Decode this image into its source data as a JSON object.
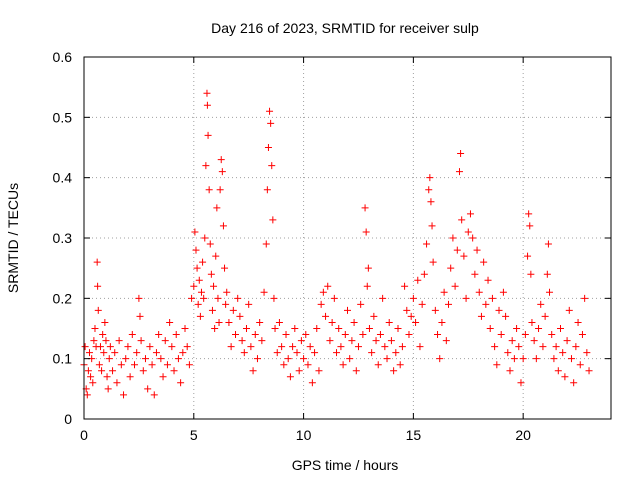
{
  "chart_data": {
    "type": "scatter",
    "title": "Day 216 of 2023, SRMTID for receiver sulp",
    "xlabel": "GPS time / hours",
    "ylabel": "SRMTID / TECUs",
    "xlim": [
      0,
      24
    ],
    "ylim": [
      0,
      0.6
    ],
    "xticks": [
      0,
      5,
      10,
      15,
      20
    ],
    "yticks": [
      0,
      0.1,
      0.2,
      0.3,
      0.4,
      0.5,
      0.6
    ],
    "xtick_labels": [
      "0",
      "5",
      "10",
      "15",
      "20"
    ],
    "ytick_labels": [
      "0",
      "0.1",
      "0.2",
      "0.3",
      "0.4",
      "0.5",
      "0.6"
    ],
    "grid": true,
    "marker": "+",
    "color": "#ff0000",
    "series": [
      {
        "name": "SRMTID",
        "points": [
          [
            0.0,
            0.09
          ],
          [
            0.05,
            0.12
          ],
          [
            0.1,
            0.05
          ],
          [
            0.15,
            0.04
          ],
          [
            0.2,
            0.08
          ],
          [
            0.25,
            0.11
          ],
          [
            0.3,
            0.07
          ],
          [
            0.35,
            0.1
          ],
          [
            0.4,
            0.06
          ],
          [
            0.45,
            0.13
          ],
          [
            0.5,
            0.15
          ],
          [
            0.55,
            0.12
          ],
          [
            0.6,
            0.26
          ],
          [
            0.62,
            0.22
          ],
          [
            0.65,
            0.18
          ],
          [
            0.7,
            0.09
          ],
          [
            0.75,
            0.12
          ],
          [
            0.8,
            0.08
          ],
          [
            0.85,
            0.14
          ],
          [
            0.9,
            0.11
          ],
          [
            0.95,
            0.16
          ],
          [
            1.0,
            0.13
          ],
          [
            1.05,
            0.07
          ],
          [
            1.1,
            0.05
          ],
          [
            1.15,
            0.1
          ],
          [
            1.2,
            0.12
          ],
          [
            1.3,
            0.08
          ],
          [
            1.4,
            0.11
          ],
          [
            1.5,
            0.06
          ],
          [
            1.6,
            0.13
          ],
          [
            1.7,
            0.09
          ],
          [
            1.8,
            0.04
          ],
          [
            1.9,
            0.1
          ],
          [
            2.0,
            0.12
          ],
          [
            2.1,
            0.07
          ],
          [
            2.2,
            0.14
          ],
          [
            2.3,
            0.09
          ],
          [
            2.4,
            0.11
          ],
          [
            2.5,
            0.2
          ],
          [
            2.55,
            0.17
          ],
          [
            2.6,
            0.13
          ],
          [
            2.7,
            0.08
          ],
          [
            2.8,
            0.1
          ],
          [
            2.9,
            0.05
          ],
          [
            3.0,
            0.12
          ],
          [
            3.1,
            0.09
          ],
          [
            3.2,
            0.04
          ],
          [
            3.3,
            0.11
          ],
          [
            3.4,
            0.14
          ],
          [
            3.5,
            0.1
          ],
          [
            3.6,
            0.07
          ],
          [
            3.7,
            0.13
          ],
          [
            3.8,
            0.09
          ],
          [
            3.9,
            0.16
          ],
          [
            4.0,
            0.12
          ],
          [
            4.1,
            0.08
          ],
          [
            4.2,
            0.14
          ],
          [
            4.3,
            0.1
          ],
          [
            4.4,
            0.06
          ],
          [
            4.5,
            0.11
          ],
          [
            4.6,
            0.15
          ],
          [
            4.7,
            0.12
          ],
          [
            4.8,
            0.09
          ],
          [
            4.9,
            0.2
          ],
          [
            5.0,
            0.22
          ],
          [
            5.05,
            0.31
          ],
          [
            5.1,
            0.28
          ],
          [
            5.15,
            0.25
          ],
          [
            5.2,
            0.19
          ],
          [
            5.25,
            0.23
          ],
          [
            5.3,
            0.17
          ],
          [
            5.35,
            0.21
          ],
          [
            5.4,
            0.26
          ],
          [
            5.45,
            0.2
          ],
          [
            5.5,
            0.3
          ],
          [
            5.55,
            0.42
          ],
          [
            5.6,
            0.54
          ],
          [
            5.62,
            0.52
          ],
          [
            5.65,
            0.47
          ],
          [
            5.7,
            0.38
          ],
          [
            5.75,
            0.29
          ],
          [
            5.8,
            0.24
          ],
          [
            5.85,
            0.18
          ],
          [
            5.9,
            0.22
          ],
          [
            5.95,
            0.15
          ],
          [
            6.0,
            0.27
          ],
          [
            6.05,
            0.35
          ],
          [
            6.1,
            0.2
          ],
          [
            6.15,
            0.16
          ],
          [
            6.2,
            0.38
          ],
          [
            6.25,
            0.43
          ],
          [
            6.3,
            0.41
          ],
          [
            6.35,
            0.32
          ],
          [
            6.4,
            0.25
          ],
          [
            6.45,
            0.19
          ],
          [
            6.5,
            0.21
          ],
          [
            6.6,
            0.16
          ],
          [
            6.7,
            0.12
          ],
          [
            6.8,
            0.18
          ],
          [
            6.9,
            0.14
          ],
          [
            7.0,
            0.2
          ],
          [
            7.1,
            0.17
          ],
          [
            7.2,
            0.13
          ],
          [
            7.3,
            0.11
          ],
          [
            7.4,
            0.15
          ],
          [
            7.5,
            0.19
          ],
          [
            7.6,
            0.12
          ],
          [
            7.7,
            0.08
          ],
          [
            7.8,
            0.14
          ],
          [
            7.9,
            0.1
          ],
          [
            8.0,
            0.16
          ],
          [
            8.1,
            0.13
          ],
          [
            8.2,
            0.21
          ],
          [
            8.3,
            0.29
          ],
          [
            8.35,
            0.38
          ],
          [
            8.4,
            0.45
          ],
          [
            8.45,
            0.51
          ],
          [
            8.5,
            0.49
          ],
          [
            8.55,
            0.42
          ],
          [
            8.6,
            0.33
          ],
          [
            8.65,
            0.2
          ],
          [
            8.7,
            0.15
          ],
          [
            8.8,
            0.11
          ],
          [
            8.9,
            0.16
          ],
          [
            9.0,
            0.12
          ],
          [
            9.1,
            0.09
          ],
          [
            9.2,
            0.14
          ],
          [
            9.3,
            0.1
          ],
          [
            9.4,
            0.07
          ],
          [
            9.5,
            0.12
          ],
          [
            9.6,
            0.15
          ],
          [
            9.7,
            0.11
          ],
          [
            9.8,
            0.08
          ],
          [
            9.9,
            0.13
          ],
          [
            10.0,
            0.1
          ],
          [
            10.1,
            0.14
          ],
          [
            10.2,
            0.09
          ],
          [
            10.3,
            0.12
          ],
          [
            10.4,
            0.06
          ],
          [
            10.5,
            0.11
          ],
          [
            10.6,
            0.15
          ],
          [
            10.7,
            0.08
          ],
          [
            10.8,
            0.19
          ],
          [
            10.9,
            0.21
          ],
          [
            11.0,
            0.17
          ],
          [
            11.1,
            0.22
          ],
          [
            11.2,
            0.13
          ],
          [
            11.3,
            0.16
          ],
          [
            11.4,
            0.2
          ],
          [
            11.5,
            0.11
          ],
          [
            11.6,
            0.15
          ],
          [
            11.7,
            0.12
          ],
          [
            11.8,
            0.09
          ],
          [
            11.9,
            0.14
          ],
          [
            12.0,
            0.18
          ],
          [
            12.1,
            0.1
          ],
          [
            12.2,
            0.13
          ],
          [
            12.3,
            0.16
          ],
          [
            12.4,
            0.08
          ],
          [
            12.5,
            0.12
          ],
          [
            12.6,
            0.19
          ],
          [
            12.7,
            0.14
          ],
          [
            12.8,
            0.35
          ],
          [
            12.85,
            0.31
          ],
          [
            12.9,
            0.22
          ],
          [
            12.95,
            0.25
          ],
          [
            13.0,
            0.15
          ],
          [
            13.1,
            0.11
          ],
          [
            13.2,
            0.17
          ],
          [
            13.3,
            0.13
          ],
          [
            13.4,
            0.09
          ],
          [
            13.5,
            0.14
          ],
          [
            13.6,
            0.2
          ],
          [
            13.7,
            0.12
          ],
          [
            13.8,
            0.1
          ],
          [
            13.9,
            0.16
          ],
          [
            14.0,
            0.13
          ],
          [
            14.1,
            0.08
          ],
          [
            14.2,
            0.11
          ],
          [
            14.3,
            0.15
          ],
          [
            14.4,
            0.09
          ],
          [
            14.5,
            0.12
          ],
          [
            14.6,
            0.22
          ],
          [
            14.7,
            0.18
          ],
          [
            14.8,
            0.14
          ],
          [
            14.9,
            0.17
          ],
          [
            15.0,
            0.2
          ],
          [
            15.1,
            0.16
          ],
          [
            15.2,
            0.23
          ],
          [
            15.3,
            0.12
          ],
          [
            15.4,
            0.19
          ],
          [
            15.5,
            0.24
          ],
          [
            15.6,
            0.29
          ],
          [
            15.7,
            0.38
          ],
          [
            15.75,
            0.4
          ],
          [
            15.8,
            0.36
          ],
          [
            15.85,
            0.32
          ],
          [
            15.9,
            0.26
          ],
          [
            16.0,
            0.18
          ],
          [
            16.1,
            0.14
          ],
          [
            16.2,
            0.1
          ],
          [
            16.3,
            0.16
          ],
          [
            16.4,
            0.21
          ],
          [
            16.5,
            0.13
          ],
          [
            16.6,
            0.19
          ],
          [
            16.7,
            0.25
          ],
          [
            16.8,
            0.3
          ],
          [
            16.9,
            0.22
          ],
          [
            17.0,
            0.28
          ],
          [
            17.1,
            0.41
          ],
          [
            17.15,
            0.44
          ],
          [
            17.2,
            0.33
          ],
          [
            17.3,
            0.27
          ],
          [
            17.4,
            0.2
          ],
          [
            17.5,
            0.31
          ],
          [
            17.6,
            0.34
          ],
          [
            17.7,
            0.3
          ],
          [
            17.8,
            0.24
          ],
          [
            17.9,
            0.28
          ],
          [
            18.0,
            0.21
          ],
          [
            18.1,
            0.17
          ],
          [
            18.2,
            0.26
          ],
          [
            18.3,
            0.19
          ],
          [
            18.4,
            0.23
          ],
          [
            18.5,
            0.15
          ],
          [
            18.6,
            0.2
          ],
          [
            18.7,
            0.12
          ],
          [
            18.8,
            0.09
          ],
          [
            18.9,
            0.18
          ],
          [
            19.0,
            0.14
          ],
          [
            19.1,
            0.21
          ],
          [
            19.2,
            0.17
          ],
          [
            19.3,
            0.11
          ],
          [
            19.4,
            0.08
          ],
          [
            19.5,
            0.13
          ],
          [
            19.6,
            0.1
          ],
          [
            19.7,
            0.15
          ],
          [
            19.8,
            0.12
          ],
          [
            19.9,
            0.06
          ],
          [
            20.0,
            0.1
          ],
          [
            20.1,
            0.14
          ],
          [
            20.2,
            0.27
          ],
          [
            20.25,
            0.34
          ],
          [
            20.3,
            0.32
          ],
          [
            20.35,
            0.24
          ],
          [
            20.4,
            0.16
          ],
          [
            20.5,
            0.13
          ],
          [
            20.6,
            0.1
          ],
          [
            20.7,
            0.15
          ],
          [
            20.8,
            0.19
          ],
          [
            20.9,
            0.12
          ],
          [
            21.0,
            0.17
          ],
          [
            21.1,
            0.24
          ],
          [
            21.15,
            0.29
          ],
          [
            21.2,
            0.21
          ],
          [
            21.3,
            0.14
          ],
          [
            21.4,
            0.1
          ],
          [
            21.5,
            0.12
          ],
          [
            21.6,
            0.08
          ],
          [
            21.7,
            0.15
          ],
          [
            21.8,
            0.11
          ],
          [
            21.9,
            0.07
          ],
          [
            22.0,
            0.13
          ],
          [
            22.1,
            0.18
          ],
          [
            22.2,
            0.1
          ],
          [
            22.3,
            0.06
          ],
          [
            22.4,
            0.12
          ],
          [
            22.5,
            0.16
          ],
          [
            22.6,
            0.09
          ],
          [
            22.7,
            0.14
          ],
          [
            22.8,
            0.2
          ],
          [
            22.9,
            0.11
          ],
          [
            23.0,
            0.08
          ]
        ]
      }
    ]
  }
}
